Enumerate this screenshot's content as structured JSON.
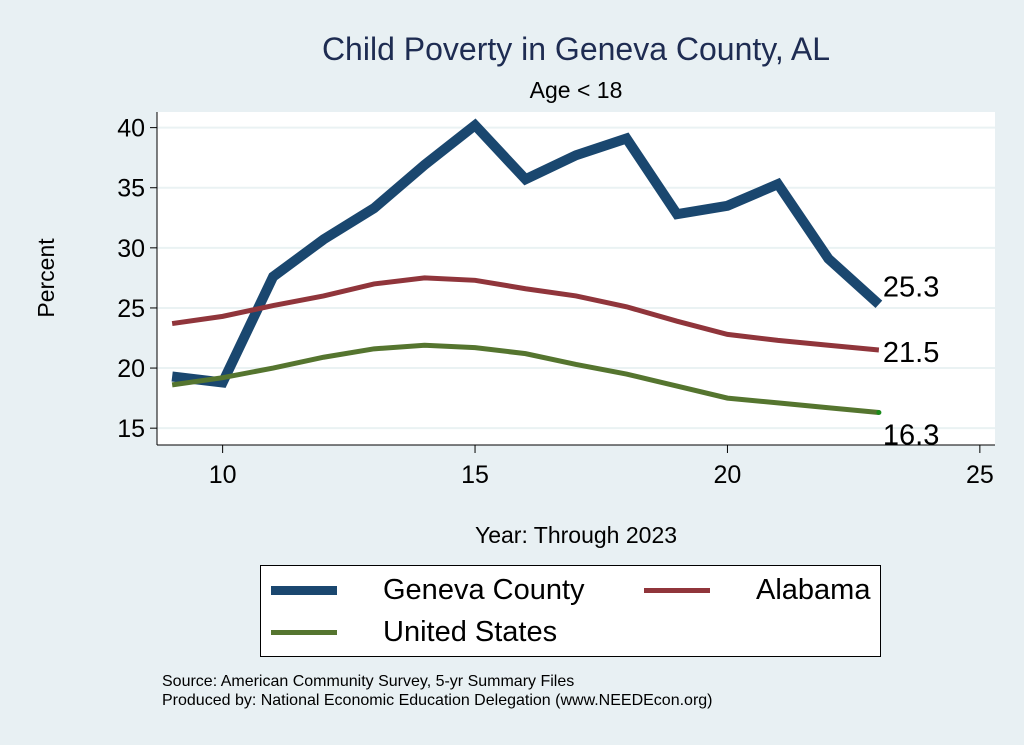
{
  "chart_data": {
    "type": "line",
    "title": "Child Poverty in Geneva County, AL",
    "subtitle": "Age < 18",
    "xlabel": "Year: Through 2023",
    "ylabel": "Percent",
    "xlim": [
      8.7,
      25.3
    ],
    "ylim": [
      13.6,
      41.3
    ],
    "xticks": [
      10,
      15,
      20,
      25
    ],
    "yticks": [
      15,
      20,
      25,
      30,
      35,
      40
    ],
    "grid": true,
    "legend_position": "bottom",
    "x": [
      9,
      10,
      11,
      12,
      13,
      14,
      15,
      16,
      17,
      18,
      19,
      20,
      21,
      22,
      23
    ],
    "series": [
      {
        "name": "Geneva County",
        "color": "#1a476f",
        "values": [
          19.3,
          18.8,
          27.6,
          30.7,
          33.3,
          36.9,
          40.2,
          35.7,
          37.7,
          39.1,
          32.8,
          33.5,
          35.3,
          29.1,
          25.3
        ],
        "end_label": "25.3"
      },
      {
        "name": "Alabama",
        "color": "#90353b",
        "values": [
          23.7,
          24.3,
          25.2,
          26.0,
          27.0,
          27.5,
          27.3,
          26.6,
          26.0,
          25.1,
          23.9,
          22.8,
          22.3,
          21.9,
          21.5
        ],
        "end_label": "21.5"
      },
      {
        "name": "United States",
        "color": "#55752f",
        "values": [
          18.6,
          19.2,
          20.0,
          20.9,
          21.6,
          21.9,
          21.7,
          21.2,
          20.3,
          19.5,
          18.5,
          17.5,
          17.1,
          16.7,
          16.3
        ],
        "end_label": "16.3"
      }
    ]
  },
  "legend": {
    "items": [
      "Geneva County",
      "Alabama",
      "United States"
    ]
  },
  "notes": {
    "source": "Source: American Community Survey, 5-yr Summary Files",
    "produced": "Produced by: National Economic Education Delegation (www.NEEDEcon.org)"
  }
}
